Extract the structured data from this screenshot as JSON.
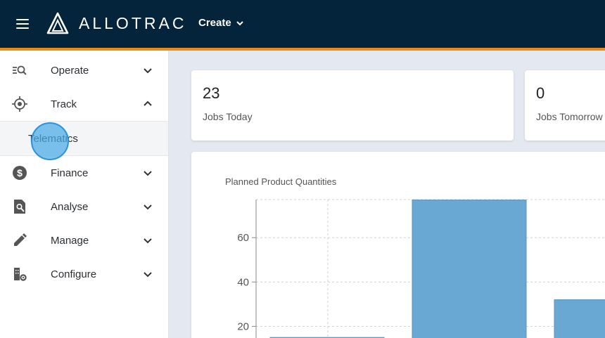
{
  "header": {
    "brand": "ALLOTRAC",
    "create_label": "Create"
  },
  "sidebar": {
    "items": [
      {
        "label": "Operate",
        "icon": "operate-search-list-icon",
        "expanded": false
      },
      {
        "label": "Track",
        "icon": "crosshair-icon",
        "expanded": true
      },
      {
        "label": "Finance",
        "icon": "dollar-circle-icon",
        "expanded": false
      },
      {
        "label": "Analyse",
        "icon": "document-search-icon",
        "expanded": false
      },
      {
        "label": "Manage",
        "icon": "pencil-icon",
        "expanded": false
      },
      {
        "label": "Configure",
        "icon": "building-gear-icon",
        "expanded": false
      }
    ],
    "track_subitems": [
      {
        "label": "Telematics"
      }
    ]
  },
  "stats": [
    {
      "value": "23",
      "label": "Jobs Today"
    },
    {
      "value": "0",
      "label": "Jobs Tomorrow"
    }
  ],
  "colors": {
    "topbar": "#03243a",
    "accent": "#ea8a1a",
    "bar": "#6aa8d4"
  },
  "chart_data": {
    "type": "bar",
    "title": "Planned Product Quantities",
    "yticks": [
      20,
      40,
      60
    ],
    "series": [
      {
        "values": [
          15,
          77,
          32
        ]
      }
    ],
    "ylim": [
      0,
      77
    ],
    "grid": true
  }
}
